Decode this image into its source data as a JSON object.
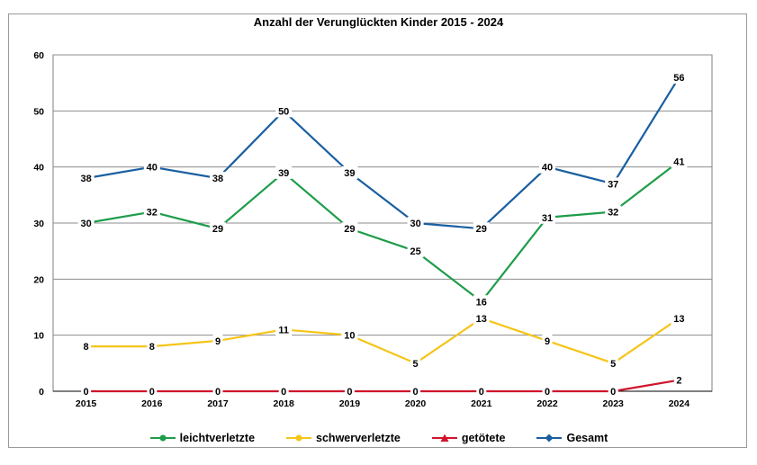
{
  "chart_data": {
    "type": "line",
    "title": "Anzahl der Verunglückten Kinder 2015 - 2024",
    "xlabel": "",
    "ylabel": "",
    "categories": [
      "2015",
      "2016",
      "2017",
      "2018",
      "2019",
      "2020",
      "2021",
      "2022",
      "2023",
      "2024"
    ],
    "ylim": [
      0,
      60
    ],
    "yticks": [
      0,
      10,
      20,
      30,
      40,
      50,
      60
    ],
    "grid": true,
    "legend_position": "bottom",
    "series": [
      {
        "name": "leichtverletzte",
        "color": "#1e9c4a",
        "marker": "circle",
        "values": [
          30,
          32,
          29,
          39,
          29,
          25,
          16,
          31,
          32,
          41
        ]
      },
      {
        "name": "schwerverletzte",
        "color": "#f5c518",
        "marker": "circle",
        "values": [
          8,
          8,
          9,
          11,
          10,
          5,
          13,
          9,
          5,
          13
        ]
      },
      {
        "name": "getötete",
        "color": "#d0142c",
        "marker": "triangle",
        "values": [
          0,
          0,
          0,
          0,
          0,
          0,
          0,
          0,
          0,
          2
        ]
      },
      {
        "name": "Gesamt",
        "color": "#1a5fa0",
        "marker": "diamond",
        "values": [
          38,
          40,
          38,
          50,
          39,
          30,
          29,
          40,
          37,
          56
        ]
      }
    ]
  }
}
